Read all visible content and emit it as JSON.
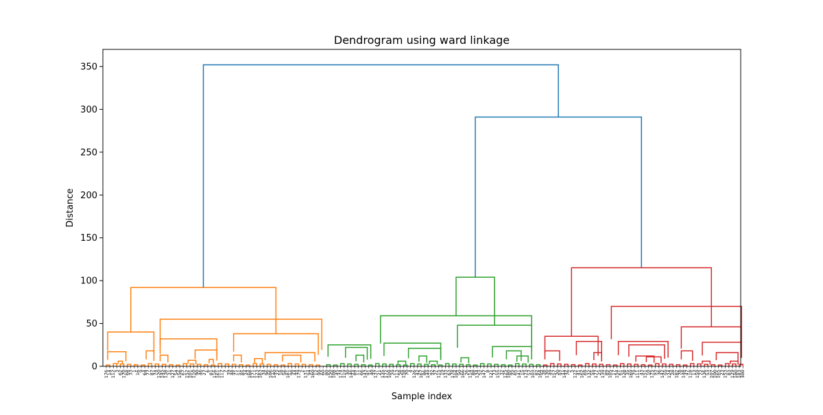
{
  "chart_data": {
    "type": "dendrogram",
    "title": "Dendrogram using ward linkage",
    "xlabel": "Sample index",
    "ylabel": "Distance",
    "ylim": [
      0,
      370
    ],
    "y_ticks": [
      0,
      50,
      100,
      150,
      200,
      250,
      300,
      350
    ],
    "grid": false,
    "leaf_count": 183,
    "leaf_labels": [
      "176",
      "14",
      "112",
      "3",
      "62",
      "170",
      "68",
      "33",
      "1",
      "16",
      "9",
      "64",
      "77",
      "87",
      "74",
      "120",
      "145",
      "138",
      "31",
      "127",
      "54",
      "156",
      "67",
      "152",
      "101",
      "110",
      "90",
      "46",
      "27",
      "6",
      "81",
      "116",
      "161",
      "117",
      "7",
      "39",
      "48",
      "71",
      "51",
      "85",
      "24",
      "168",
      "171",
      "123",
      "163",
      "34",
      "96",
      "106",
      "140",
      "22",
      "18",
      "56",
      "181",
      "98",
      "44",
      "179",
      "2",
      "131",
      "94",
      "160",
      "12",
      "99",
      "60",
      "80",
      "150",
      "108",
      "45",
      "174",
      "119",
      "30",
      "146",
      "84",
      "11",
      "66",
      "143",
      "91",
      "40",
      "137",
      "21",
      "135",
      "172",
      "109",
      "29",
      "113",
      "58",
      "158",
      "70",
      "4",
      "126",
      "42",
      "167",
      "86",
      "149",
      "92",
      "37",
      "115",
      "19",
      "133",
      "63",
      "178",
      "104",
      "50",
      "166",
      "26",
      "114",
      "88",
      "134",
      "52",
      "147",
      "8",
      "121",
      "73",
      "155",
      "32",
      "125",
      "180",
      "95",
      "65",
      "141",
      "15",
      "173",
      "57",
      "103",
      "82",
      "164",
      "38",
      "130",
      "49",
      "157",
      "20",
      "97",
      "144",
      "76",
      "5",
      "122",
      "41",
      "162",
      "69",
      "132",
      "55",
      "177",
      "25",
      "139",
      "89",
      "105",
      "17",
      "154",
      "61",
      "128",
      "35",
      "169",
      "79",
      "111",
      "43",
      "151",
      "10",
      "175",
      "93",
      "36",
      "142",
      "59",
      "124",
      "28",
      "182",
      "78",
      "148",
      "47",
      "118",
      "13",
      "159",
      "72",
      "136",
      "53",
      "107",
      "100",
      "165",
      "23",
      "153",
      "83",
      "129",
      "180",
      "183",
      "300"
    ],
    "colors": {
      "above_threshold": "#1f77b4",
      "cluster_1": "#ff7f0e",
      "cluster_2": "#2ca02c",
      "cluster_3": "#d62728"
    },
    "clusters": [
      {
        "color": "cluster_1",
        "leaf_range": [
          0,
          62
        ],
        "top_merge": 92,
        "merges": [
          {
            "dist": 40,
            "range": [
              0,
              14
            ]
          },
          {
            "dist": 17,
            "range": [
              0,
              6
            ]
          },
          {
            "dist": 18,
            "range": [
              11,
              14
            ]
          },
          {
            "dist": 6,
            "range": [
              3,
              5
            ]
          },
          {
            "dist": 55,
            "range": [
              15,
              62
            ]
          },
          {
            "dist": 32,
            "range": [
              15,
              32
            ]
          },
          {
            "dist": 13,
            "range": [
              15,
              18
            ]
          },
          {
            "dist": 19,
            "range": [
              25,
              32
            ]
          },
          {
            "dist": 7,
            "range": [
              23,
              26
            ]
          },
          {
            "dist": 8,
            "range": [
              29,
              31
            ]
          },
          {
            "dist": 38,
            "range": [
              36,
              61
            ]
          },
          {
            "dist": 13,
            "range": [
              36,
              39
            ]
          },
          {
            "dist": 16,
            "range": [
              45,
              60
            ]
          },
          {
            "dist": 9,
            "range": [
              42,
              45
            ]
          },
          {
            "dist": 13,
            "range": [
              50,
              56
            ]
          }
        ]
      },
      {
        "color": "cluster_2",
        "leaf_range": [
          63,
          124
        ],
        "top_merge": 104,
        "merges": [
          {
            "dist": 25,
            "range": [
              63,
              76
            ]
          },
          {
            "dist": 22,
            "range": [
              68,
              75
            ]
          },
          {
            "dist": 13,
            "range": [
              71,
              74
            ]
          },
          {
            "dist": 59,
            "range": [
              78,
              122
            ]
          },
          {
            "dist": 27,
            "range": [
              79,
              96
            ]
          },
          {
            "dist": 6,
            "range": [
              83,
              86
            ]
          },
          {
            "dist": 21,
            "range": [
              86,
              96
            ]
          },
          {
            "dist": 12,
            "range": [
              89,
              92
            ]
          },
          {
            "dist": 6,
            "range": [
              92,
              95
            ]
          },
          {
            "dist": 48,
            "range": [
              100,
              122
            ]
          },
          {
            "dist": 10,
            "range": [
              101,
              104
            ]
          },
          {
            "dist": 23,
            "range": [
              110,
              122
            ]
          },
          {
            "dist": 18,
            "range": [
              114,
              119
            ]
          },
          {
            "dist": 12,
            "range": [
              117,
              121
            ]
          }
        ]
      },
      {
        "color": "cluster_3",
        "leaf_range": [
          125,
          182
        ],
        "top_merge": 115,
        "merges": [
          {
            "dist": 35,
            "range": [
              125,
              141
            ]
          },
          {
            "dist": 18,
            "range": [
              125,
              130
            ]
          },
          {
            "dist": 29,
            "range": [
              134,
              142
            ]
          },
          {
            "dist": 16,
            "range": [
              139,
              142
            ]
          },
          {
            "dist": 70,
            "range": [
              144,
              182
            ]
          },
          {
            "dist": 29,
            "range": [
              146,
              161
            ]
          },
          {
            "dist": 25,
            "range": [
              149,
              160
            ]
          },
          {
            "dist": 12,
            "range": [
              151,
              157
            ]
          },
          {
            "dist": 11,
            "range": [
              154,
              159
            ]
          },
          {
            "dist": 46,
            "range": [
              164,
              182
            ]
          },
          {
            "dist": 18,
            "range": [
              164,
              168
            ]
          },
          {
            "dist": 28,
            "range": [
              170,
              182
            ]
          },
          {
            "dist": 6,
            "range": [
              170,
              173
            ]
          },
          {
            "dist": 16,
            "range": [
              174,
              181
            ]
          },
          {
            "dist": 6,
            "range": [
              178,
              181
            ]
          }
        ]
      }
    ],
    "top_links": [
      {
        "dist": 291,
        "left": "cluster_2",
        "right": "cluster_3"
      },
      {
        "dist": 352,
        "left": "cluster_1",
        "right": "merge_291"
      }
    ]
  }
}
